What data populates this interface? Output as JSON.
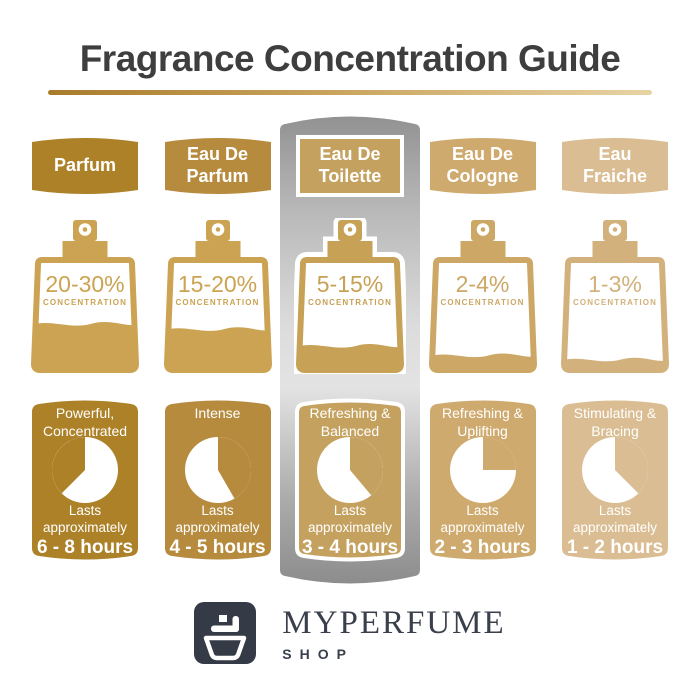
{
  "title": "Fragrance Concentration Guide",
  "bottle_label": "CONCENTRATION",
  "brand": {
    "name": "MYPERFUME",
    "sub": "SHOP"
  },
  "colors": {
    "title_text": "#3E3E3E",
    "underline_left": "#A97C2C",
    "underline_right": "#E8D3A4",
    "highlight_panel_dark": "#929292",
    "highlight_panel_light": "#E3E3E3",
    "logo_box": "#343B46",
    "logo_text": "#3A404B",
    "header_text": "#FFFFFF"
  },
  "columns": [
    {
      "name": "Parfum",
      "header": "Parfum",
      "concentration": "20-30%",
      "fill_percent": 43,
      "character": "Powerful,\nConcentrated",
      "lasts": "Lasts\napproximately",
      "duration": "6 - 8 hours",
      "clock": {
        "wedge_start_deg": 225,
        "wedge_end_deg": 360
      },
      "colors": {
        "main": "#AC8128",
        "bottle": "#CBA352"
      },
      "highlighted": false
    },
    {
      "name": "Eau De Parfum",
      "header": "Eau De\nParfum",
      "concentration": "15-20%",
      "fill_percent": 38,
      "character": "Intense",
      "lasts": "Lasts\napproximately",
      "duration": "4 - 5 hours",
      "clock": {
        "wedge_start_deg": 0,
        "wedge_end_deg": 150
      },
      "colors": {
        "main": "#B78B3D",
        "bottle": "#CBA352"
      },
      "highlighted": false
    },
    {
      "name": "Eau De Toilette",
      "header": "Eau De\nToilette",
      "concentration": "5-15%",
      "fill_percent": 22,
      "character": "Refreshing &\nBalanced",
      "lasts": "Lasts\napproximately",
      "duration": "3 - 4 hours",
      "clock": {
        "wedge_start_deg": 0,
        "wedge_end_deg": 140
      },
      "colors": {
        "main": "#C5A15F",
        "bottle": "#C6A156"
      },
      "highlighted": true
    },
    {
      "name": "Eau De Cologne",
      "header": "Eau De\nCologne",
      "concentration": "2-4%",
      "fill_percent": 13,
      "character": "Refreshing &\nUplifting",
      "lasts": "Lasts\napproximately",
      "duration": "2 - 3 hours",
      "clock": {
        "wedge_start_deg": 0,
        "wedge_end_deg": 90
      },
      "colors": {
        "main": "#CFAA6E",
        "bottle": "#CCA765"
      },
      "highlighted": false
    },
    {
      "name": "Eau Fraiche",
      "header": "Eau\nFraiche",
      "concentration": "1-3%",
      "fill_percent": 9,
      "character": "Stimulating &\nBracing",
      "lasts": "Lasts\napproximately",
      "duration": "1 - 2 hours",
      "clock": {
        "wedge_start_deg": 0,
        "wedge_end_deg": 135
      },
      "colors": {
        "main": "#DABD92",
        "bottle": "#D2B17C"
      },
      "highlighted": false
    }
  ]
}
